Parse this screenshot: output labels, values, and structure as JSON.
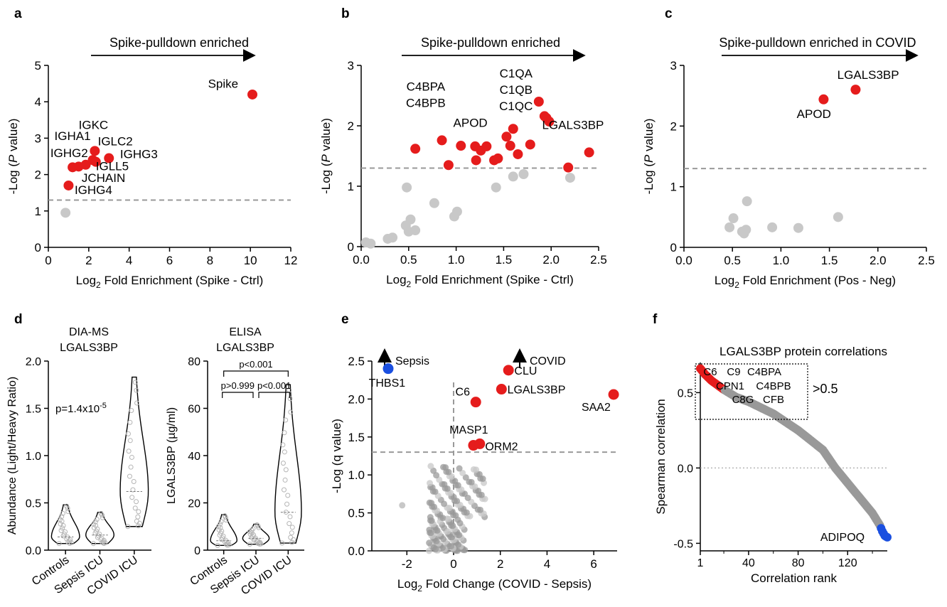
{
  "colors": {
    "sig": "#e51c1c",
    "nonsig": "#c8c8c8",
    "blue": "#1a4fe0",
    "grey_dot": "#999999",
    "violin_pt": "#b5b5b5"
  },
  "panels": {
    "a": {
      "letter": "a",
      "arrow_text": "Spike-pulldown enriched",
      "chart_data": {
        "type": "scatter",
        "xlabel": "Log2 Fold Enrichment (Spike - Ctrl)",
        "ylabel": "-Log (P value)",
        "xlim": [
          0,
          12
        ],
        "ylim": [
          0,
          5
        ],
        "xticks": [
          "0",
          "2",
          "4",
          "6",
          "8",
          "10",
          "12"
        ],
        "yticks": [
          "0",
          "1",
          "2",
          "3",
          "4",
          "5"
        ],
        "threshold": 1.3,
        "points": [
          {
            "x": 10.1,
            "y": 4.2,
            "sig": true
          },
          {
            "x": 2.3,
            "y": 2.65,
            "sig": true
          },
          {
            "x": 3.0,
            "y": 2.45,
            "sig": true
          },
          {
            "x": 2.2,
            "y": 2.4,
            "sig": true
          },
          {
            "x": 2.35,
            "y": 2.35,
            "sig": true
          },
          {
            "x": 1.85,
            "y": 2.27,
            "sig": true
          },
          {
            "x": 1.5,
            "y": 2.22,
            "sig": true
          },
          {
            "x": 1.2,
            "y": 2.2,
            "sig": true
          },
          {
            "x": 1.0,
            "y": 1.7,
            "sig": true
          },
          {
            "x": 0.85,
            "y": 0.95,
            "sig": false
          }
        ],
        "labels": [
          {
            "text": "Spike",
            "x": 9.4,
            "y": 4.38,
            "anchor": "end"
          },
          {
            "text": "IGKC",
            "x": 1.5,
            "y": 3.25,
            "anchor": "start"
          },
          {
            "text": "IGHA1",
            "x": 0.3,
            "y": 2.95,
            "anchor": "start"
          },
          {
            "text": "IGLC2",
            "x": 2.45,
            "y": 2.8,
            "anchor": "start"
          },
          {
            "text": "IGHG2",
            "x": 0.1,
            "y": 2.48,
            "anchor": "start"
          },
          {
            "text": "IGHG3",
            "x": 3.55,
            "y": 2.45,
            "anchor": "start"
          },
          {
            "text": "IGLL5",
            "x": 2.35,
            "y": 2.12,
            "anchor": "start"
          },
          {
            "text": "JCHAIN",
            "x": 1.65,
            "y": 1.8,
            "anchor": "start"
          },
          {
            "text": "IGHG4",
            "x": 1.3,
            "y": 1.46,
            "anchor": "start"
          }
        ]
      }
    },
    "b": {
      "letter": "b",
      "arrow_text": "Spike-pulldown enriched",
      "chart_data": {
        "type": "scatter",
        "xlabel": "Log2 Fold Enrichment (Spike - Ctrl)",
        "ylabel": "-Log (P value)",
        "xlim": [
          0,
          2.5
        ],
        "ylim": [
          0,
          3
        ],
        "xticks": [
          "0.0",
          "0.5",
          "1.0",
          "1.5",
          "2.0",
          "2.5"
        ],
        "yticks": [
          "0",
          "1",
          "2",
          "3"
        ],
        "threshold": 1.3,
        "points": [
          {
            "x": 0.57,
            "y": 1.62,
            "sig": true
          },
          {
            "x": 0.85,
            "y": 1.76,
            "sig": true
          },
          {
            "x": 0.92,
            "y": 1.35,
            "sig": true
          },
          {
            "x": 1.05,
            "y": 1.67,
            "sig": true
          },
          {
            "x": 1.2,
            "y": 1.66,
            "sig": true
          },
          {
            "x": 1.26,
            "y": 1.59,
            "sig": true
          },
          {
            "x": 1.21,
            "y": 1.43,
            "sig": true
          },
          {
            "x": 1.32,
            "y": 1.66,
            "sig": true
          },
          {
            "x": 1.4,
            "y": 1.43,
            "sig": true
          },
          {
            "x": 1.44,
            "y": 1.46,
            "sig": true
          },
          {
            "x": 1.53,
            "y": 1.82,
            "sig": true
          },
          {
            "x": 1.57,
            "y": 1.67,
            "sig": true
          },
          {
            "x": 1.6,
            "y": 1.95,
            "sig": true
          },
          {
            "x": 1.65,
            "y": 1.53,
            "sig": true
          },
          {
            "x": 1.78,
            "y": 1.69,
            "sig": true
          },
          {
            "x": 1.87,
            "y": 2.4,
            "sig": true
          },
          {
            "x": 1.93,
            "y": 2.16,
            "sig": true
          },
          {
            "x": 1.95,
            "y": 2.13,
            "sig": true
          },
          {
            "x": 1.98,
            "y": 2.07,
            "sig": true
          },
          {
            "x": 2.18,
            "y": 1.31,
            "sig": true
          },
          {
            "x": 2.4,
            "y": 1.56,
            "sig": true
          },
          {
            "x": 0.05,
            "y": 0.07,
            "sig": false
          },
          {
            "x": 0.1,
            "y": 0.05,
            "sig": false
          },
          {
            "x": 0.28,
            "y": 0.13,
            "sig": false
          },
          {
            "x": 0.33,
            "y": 0.15,
            "sig": false
          },
          {
            "x": 0.47,
            "y": 0.35,
            "sig": false
          },
          {
            "x": 0.5,
            "y": 0.25,
            "sig": false
          },
          {
            "x": 0.52,
            "y": 0.45,
            "sig": false
          },
          {
            "x": 0.57,
            "y": 0.27,
            "sig": false
          },
          {
            "x": 0.48,
            "y": 0.98,
            "sig": false
          },
          {
            "x": 0.77,
            "y": 0.72,
            "sig": false
          },
          {
            "x": 0.98,
            "y": 0.5,
            "sig": false
          },
          {
            "x": 1.01,
            "y": 0.58,
            "sig": false
          },
          {
            "x": 1.42,
            "y": 0.98,
            "sig": false
          },
          {
            "x": 1.6,
            "y": 1.16,
            "sig": false
          },
          {
            "x": 1.71,
            "y": 1.2,
            "sig": false
          },
          {
            "x": 2.2,
            "y": 1.14,
            "sig": false
          }
        ],
        "labels": [
          {
            "text": "C1QA",
            "x": 1.63,
            "y": 2.8,
            "anchor": "middle"
          },
          {
            "text": "C1QB",
            "x": 1.63,
            "y": 2.53,
            "anchor": "middle"
          },
          {
            "text": "C1QC",
            "x": 1.63,
            "y": 2.26,
            "anchor": "middle"
          },
          {
            "text": "C4BPA",
            "x": 0.68,
            "y": 2.58,
            "anchor": "middle"
          },
          {
            "text": "C4BPB",
            "x": 0.68,
            "y": 2.31,
            "anchor": "middle"
          },
          {
            "text": "APOD",
            "x": 1.15,
            "y": 1.98,
            "anchor": "middle"
          },
          {
            "text": "LGALS3BP",
            "x": 2.23,
            "y": 1.95,
            "anchor": "middle"
          }
        ]
      }
    },
    "c": {
      "letter": "c",
      "arrow_text": "Spike-pulldown enriched in COVID",
      "chart_data": {
        "type": "scatter",
        "xlabel": "Log2 Fold Enrichment (Pos - Neg)",
        "ylabel": "-Log (P value)",
        "xlim": [
          0,
          2.5
        ],
        "ylim": [
          0,
          3
        ],
        "xticks": [
          "0.0",
          "0.5",
          "1.0",
          "1.5",
          "2.0",
          "2.5"
        ],
        "yticks": [
          "0",
          "1",
          "2",
          "3"
        ],
        "threshold": 1.3,
        "points": [
          {
            "x": 1.44,
            "y": 2.44,
            "sig": true
          },
          {
            "x": 1.77,
            "y": 2.6,
            "sig": true
          },
          {
            "x": 0.47,
            "y": 0.33,
            "sig": false
          },
          {
            "x": 0.51,
            "y": 0.48,
            "sig": false
          },
          {
            "x": 0.6,
            "y": 0.26,
            "sig": false
          },
          {
            "x": 0.62,
            "y": 0.23,
            "sig": false
          },
          {
            "x": 0.64,
            "y": 0.29,
            "sig": false
          },
          {
            "x": 0.65,
            "y": 0.76,
            "sig": false
          },
          {
            "x": 0.91,
            "y": 0.33,
            "sig": false
          },
          {
            "x": 1.18,
            "y": 0.32,
            "sig": false
          },
          {
            "x": 1.59,
            "y": 0.5,
            "sig": false
          }
        ],
        "labels": [
          {
            "text": "LGALS3BP",
            "x": 1.9,
            "y": 2.78,
            "anchor": "middle"
          },
          {
            "text": "APOD",
            "x": 1.34,
            "y": 2.13,
            "anchor": "middle"
          }
        ]
      }
    },
    "d1": {
      "letter": "d",
      "title_lines": [
        "DIA-MS",
        "LGALS3BP"
      ],
      "chart_data": {
        "type": "violin",
        "ylabel": "Abundance (Light/Heavy Ratio)",
        "ylim": [
          0,
          2.0
        ],
        "yticks": [
          "0.0",
          "0.5",
          "1.0",
          "1.5",
          "2.0"
        ],
        "categories": [
          "Controls",
          "Sepsis ICU",
          "COVID ICU"
        ],
        "groups": [
          {
            "min": 0.07,
            "max": 0.48,
            "median": 0.14
          },
          {
            "min": 0.07,
            "max": 0.4,
            "median": 0.16
          },
          {
            "min": 0.25,
            "max": 1.83,
            "median": 0.62
          }
        ],
        "annotation": "p=1.4x10-5"
      }
    },
    "d2": {
      "title_lines": [
        "ELISA",
        "LGALS3BP"
      ],
      "chart_data": {
        "type": "violin",
        "ylabel": "LGALS3BP (µg/ml)",
        "ylim": [
          0,
          80
        ],
        "yticks": [
          "0",
          "20",
          "40",
          "60",
          "80"
        ],
        "categories": [
          "Controls",
          "Sepsis ICU",
          "COVID ICU"
        ],
        "groups": [
          {
            "min": 2,
            "max": 15,
            "median": 4
          },
          {
            "min": 2.5,
            "max": 11,
            "median": 5
          },
          {
            "min": 3,
            "max": 70,
            "median": 16
          }
        ],
        "pvalues": [
          "p<0.001",
          "p>0.999",
          "p<0.001"
        ]
      }
    },
    "e": {
      "letter": "e",
      "sepsis_label": "Sepsis",
      "covid_label": "COVID",
      "chart_data": {
        "type": "scatter",
        "xlabel": "Log2 Fold Change (COVID - Sepsis)",
        "ylabel": "-Log (q value)",
        "xlim": [
          -3.5,
          7
        ],
        "ylim": [
          0,
          2.5
        ],
        "xticks": [
          "-2",
          "0",
          "2",
          "4",
          "6"
        ],
        "yticks": [
          "0.0",
          "0.5",
          "1.0",
          "1.5",
          "2.0",
          "2.5"
        ],
        "threshold": 1.3,
        "points": [
          {
            "x": -2.8,
            "y": 2.4,
            "cls": "blue"
          },
          {
            "x": 2.35,
            "y": 2.38,
            "cls": "sig"
          },
          {
            "x": 0.95,
            "y": 1.96,
            "cls": "sig"
          },
          {
            "x": 2.05,
            "y": 2.13,
            "cls": "sig"
          },
          {
            "x": 6.85,
            "y": 2.06,
            "cls": "sig"
          },
          {
            "x": 0.85,
            "y": 1.39,
            "cls": "sig"
          },
          {
            "x": 1.12,
            "y": 1.41,
            "cls": "sig"
          }
        ],
        "labels": [
          {
            "text": "THBS1",
            "x": -2.85,
            "y": 2.22,
            "anchor": "middle"
          },
          {
            "text": "CLU",
            "x": 2.6,
            "y": 2.38,
            "anchor": "start"
          },
          {
            "text": "C6",
            "x": 0.7,
            "y": 2.1,
            "anchor": "end"
          },
          {
            "text": "LGALS3BP",
            "x": 2.3,
            "y": 2.13,
            "anchor": "start"
          },
          {
            "text": "SAA2",
            "x": 6.1,
            "y": 1.9,
            "anchor": "middle"
          },
          {
            "text": "MASP1",
            "x": 0.65,
            "y": 1.6,
            "anchor": "middle"
          },
          {
            "text": "ORM2",
            "x": 1.35,
            "y": 1.38,
            "anchor": "start"
          }
        ]
      }
    },
    "f": {
      "letter": "f",
      "title": "LGALS3BP protein correlations",
      "box_labels": [
        "C6",
        "C9",
        "C4BPA",
        "CPN1",
        "C4BPB",
        "C8G",
        "CFB"
      ],
      "threshold_text": ">0.5",
      "bottom_label": "ADIPOQ",
      "chart_data": {
        "type": "scatter",
        "xlabel": "Correlation rank",
        "ylabel": "Spearman correlation",
        "xlim": [
          1,
          152
        ],
        "ylim": [
          -0.55,
          0.7
        ],
        "xticks": [
          "1",
          "40",
          "80",
          "120"
        ],
        "yticks": [
          "0.5",
          "0.0",
          "-0.5"
        ],
        "curve": [
          [
            1,
            0.66
          ],
          [
            5,
            0.62
          ],
          [
            10,
            0.58
          ],
          [
            15,
            0.55
          ],
          [
            20,
            0.52
          ],
          [
            30,
            0.47
          ],
          [
            40,
            0.44
          ],
          [
            60,
            0.36
          ],
          [
            80,
            0.25
          ],
          [
            100,
            0.12
          ],
          [
            110,
            0.0
          ],
          [
            120,
            -0.1
          ],
          [
            130,
            -0.2
          ],
          [
            140,
            -0.3
          ],
          [
            146,
            -0.38
          ],
          [
            148,
            -0.42
          ],
          [
            150,
            -0.45
          ],
          [
            152,
            -0.46
          ]
        ],
        "n_points": 152,
        "n_red": 20,
        "n_blue": 6
      }
    }
  }
}
